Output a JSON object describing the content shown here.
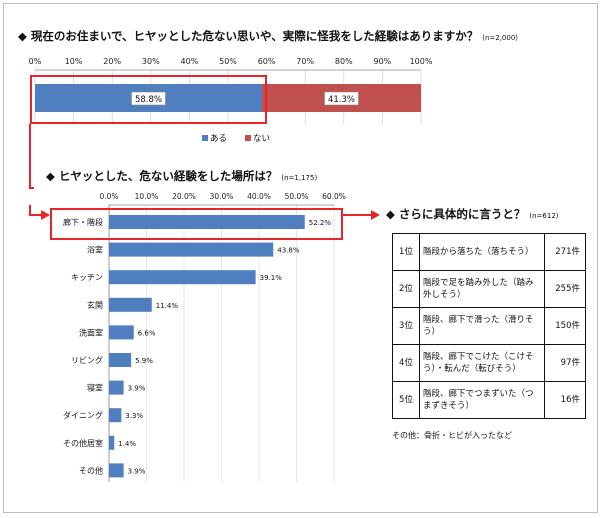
{
  "headings": {
    "q1": "◆ 現在のお住まいで、ヒヤッとした危ない思いや、実際に怪我をした経験はありますか？",
    "q1_n": "(n=2,000)",
    "q2": "◆ ヒヤッとした、危ない経験をした場所は？",
    "q2_n": "(n=1,175)",
    "q3": "◆ さらに具体的に言うと？",
    "q3_n": "(n=612)"
  },
  "colors": {
    "blue": "#4f7fbf",
    "red": "#c0504d",
    "highlight": "#e8262a"
  },
  "chart_data": [
    {
      "type": "bar",
      "orientation": "horizontal-stacked",
      "xlim": [
        0,
        100
      ],
      "ticks": [
        "0%",
        "10%",
        "20%",
        "30%",
        "40%",
        "50%",
        "60%",
        "70%",
        "80%",
        "90%",
        "100%"
      ],
      "series": [
        {
          "name": "ある",
          "values": [
            58.8
          ],
          "labels": [
            "58.8%"
          ]
        },
        {
          "name": "ない",
          "values": [
            41.3
          ],
          "labels": [
            "41.3%"
          ]
        }
      ],
      "legend": "bottom"
    },
    {
      "type": "bar",
      "orientation": "horizontal",
      "xlim": [
        0,
        60
      ],
      "ticks": [
        "0.0%",
        "10.0%",
        "20.0%",
        "30.0%",
        "40.0%",
        "50.0%",
        "60.0%"
      ],
      "categories": [
        "廊下・階段",
        "浴室",
        "キッチン",
        "玄関",
        "洗面室",
        "リビング",
        "寝室",
        "ダイニング",
        "その他居室",
        "その他"
      ],
      "values": [
        52.2,
        43.8,
        39.1,
        11.4,
        6.6,
        5.9,
        3.9,
        3.3,
        1.4,
        3.9
      ],
      "labels": [
        "52.2%",
        "43.8%",
        "39.1%",
        "11.4%",
        "6.6%",
        "5.9%",
        "3.9%",
        "3.3%",
        "1.4%",
        "3.9%"
      ]
    },
    {
      "type": "table",
      "rows": [
        {
          "rank": "1位",
          "desc": "階段から落ちた（落ちそう）",
          "count": "271件"
        },
        {
          "rank": "2位",
          "desc": "階段で足を踏み外した（踏み外しそう）",
          "count": "255件"
        },
        {
          "rank": "3位",
          "desc": "階段、廊下で滑った（滑りそう）",
          "count": "150件"
        },
        {
          "rank": "4位",
          "desc": "階段、廊下でこけた（こけそう）・転んだ（転びそう）",
          "count": "97件"
        },
        {
          "rank": "5位",
          "desc": "階段、廊下でつまずいた（つまずきそう）",
          "count": "16件"
        }
      ]
    }
  ],
  "note": "その他：骨折・ヒビが入ったなど"
}
